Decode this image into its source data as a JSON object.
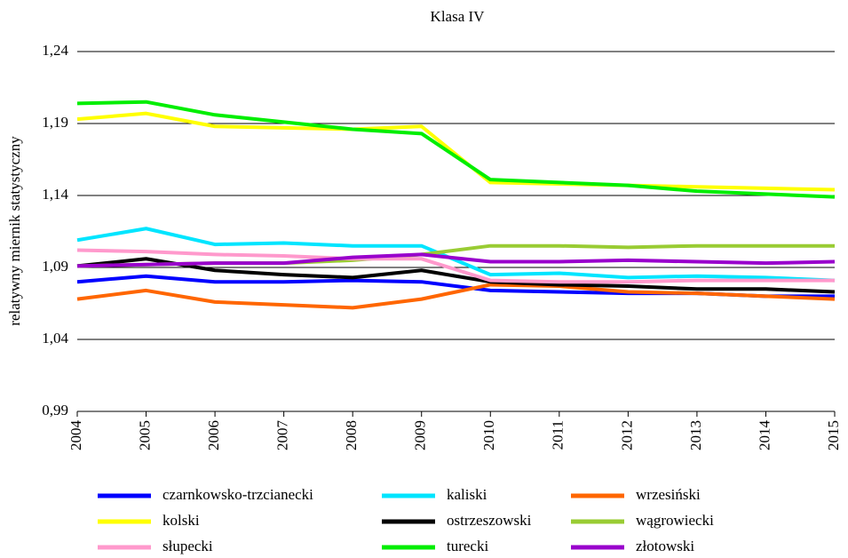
{
  "chart_data": {
    "type": "line",
    "title": "Klasa IV",
    "ylabel": "relatywny miernik statystyczny",
    "categories": [
      "2004",
      "2005",
      "2006",
      "2007",
      "2008",
      "2009",
      "2010",
      "2011",
      "2012",
      "2013",
      "2014",
      "2015"
    ],
    "ylim": [
      0.99,
      1.24
    ],
    "yticks": [
      {
        "value": 0.99,
        "label": "0,99"
      },
      {
        "value": 1.04,
        "label": "1,04"
      },
      {
        "value": 1.09,
        "label": "1,09"
      },
      {
        "value": 1.14,
        "label": "1,14"
      },
      {
        "value": 1.19,
        "label": "1,19"
      },
      {
        "value": 1.24,
        "label": "1,24"
      }
    ],
    "grid": true,
    "series": [
      {
        "name": "czarnkowsko-trzcianecki",
        "color": "#0000ff",
        "values": [
          1.08,
          1.084,
          1.08,
          1.08,
          1.081,
          1.08,
          1.074,
          1.073,
          1.072,
          1.072,
          1.07,
          1.07
        ]
      },
      {
        "name": "kaliski",
        "color": "#00e5ff",
        "values": [
          1.109,
          1.117,
          1.106,
          1.107,
          1.105,
          1.105,
          1.085,
          1.086,
          1.083,
          1.084,
          1.083,
          1.081
        ]
      },
      {
        "name": "wrzesiński",
        "color": "#ff6600",
        "values": [
          1.068,
          1.074,
          1.066,
          1.064,
          1.062,
          1.068,
          1.078,
          1.077,
          1.073,
          1.072,
          1.07,
          1.068
        ]
      },
      {
        "name": "kolski",
        "color": "#ffff00",
        "values": [
          1.193,
          1.197,
          1.188,
          1.187,
          1.186,
          1.188,
          1.149,
          1.148,
          1.147,
          1.146,
          1.145,
          1.144
        ]
      },
      {
        "name": "ostrzeszowski",
        "color": "#000000",
        "values": [
          1.091,
          1.096,
          1.088,
          1.085,
          1.083,
          1.088,
          1.08,
          1.078,
          1.077,
          1.075,
          1.075,
          1.073
        ]
      },
      {
        "name": "wągrowiecki",
        "color": "#99cc33",
        "values": [
          1.091,
          1.092,
          1.093,
          1.093,
          1.095,
          1.099,
          1.105,
          1.105,
          1.104,
          1.105,
          1.105,
          1.105
        ]
      },
      {
        "name": "słupecki",
        "color": "#ff99cc",
        "values": [
          1.102,
          1.101,
          1.099,
          1.098,
          1.096,
          1.096,
          1.081,
          1.08,
          1.08,
          1.081,
          1.081,
          1.081
        ]
      },
      {
        "name": "turecki",
        "color": "#00ee00",
        "values": [
          1.204,
          1.205,
          1.196,
          1.191,
          1.186,
          1.183,
          1.151,
          1.149,
          1.147,
          1.143,
          1.141,
          1.139
        ]
      },
      {
        "name": "złotowski",
        "color": "#9900cc",
        "values": [
          1.091,
          1.092,
          1.093,
          1.093,
          1.097,
          1.099,
          1.094,
          1.094,
          1.095,
          1.094,
          1.093,
          1.094
        ]
      }
    ]
  }
}
